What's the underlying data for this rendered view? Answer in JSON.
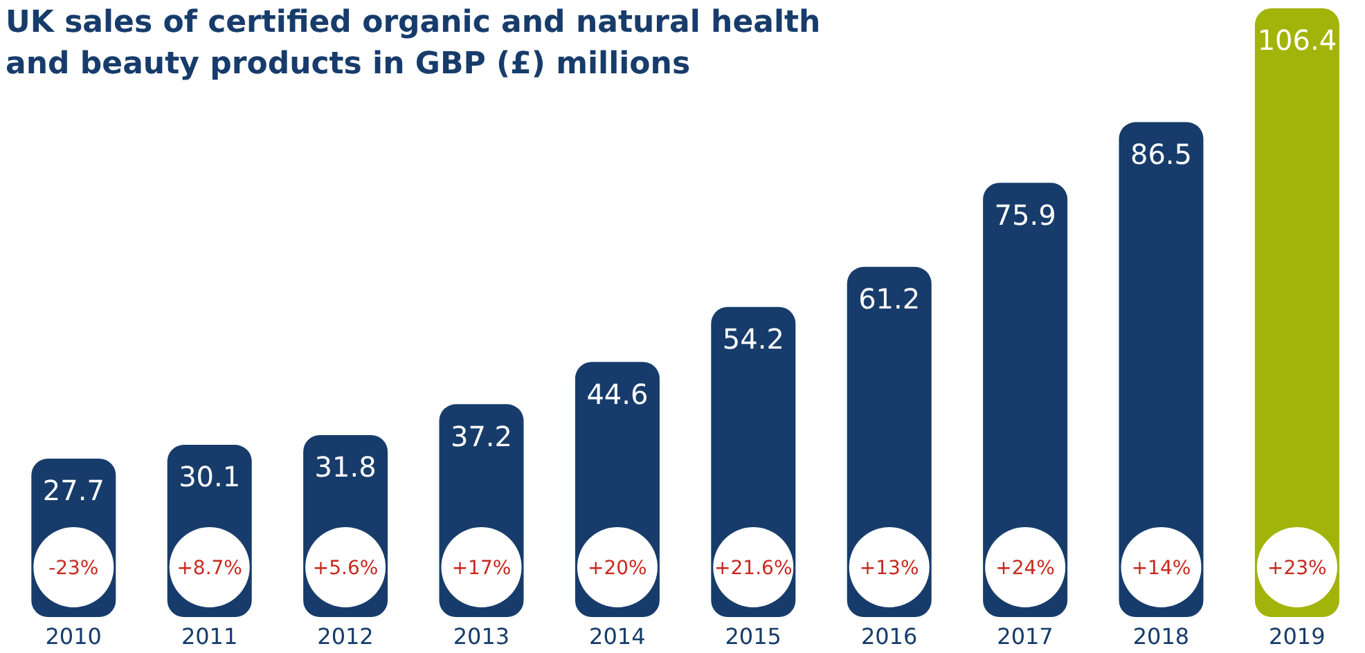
{
  "chart_data": {
    "type": "bar",
    "title": "UK sales of certified organic and natural health and beauty products in GBP (£) millions",
    "categories": [
      "2010",
      "2011",
      "2012",
      "2013",
      "2014",
      "2015",
      "2016",
      "2017",
      "2018",
      "2019"
    ],
    "values": [
      27.7,
      30.1,
      31.8,
      37.2,
      44.6,
      54.2,
      61.2,
      75.9,
      86.5,
      106.4
    ],
    "colors": [
      "#173c6b",
      "#173c6b",
      "#173c6b",
      "#173c6b",
      "#173c6b",
      "#173c6b",
      "#173c6b",
      "#173c6b",
      "#173c6b",
      "#a2b40a"
    ],
    "data_labels": true,
    "annotations": [
      "-23%",
      "+8.7%",
      "+5.6%",
      "+17%",
      "+20%",
      "+21.6%",
      "+13%",
      "+24%",
      "+14%",
      "+23%"
    ]
  }
}
